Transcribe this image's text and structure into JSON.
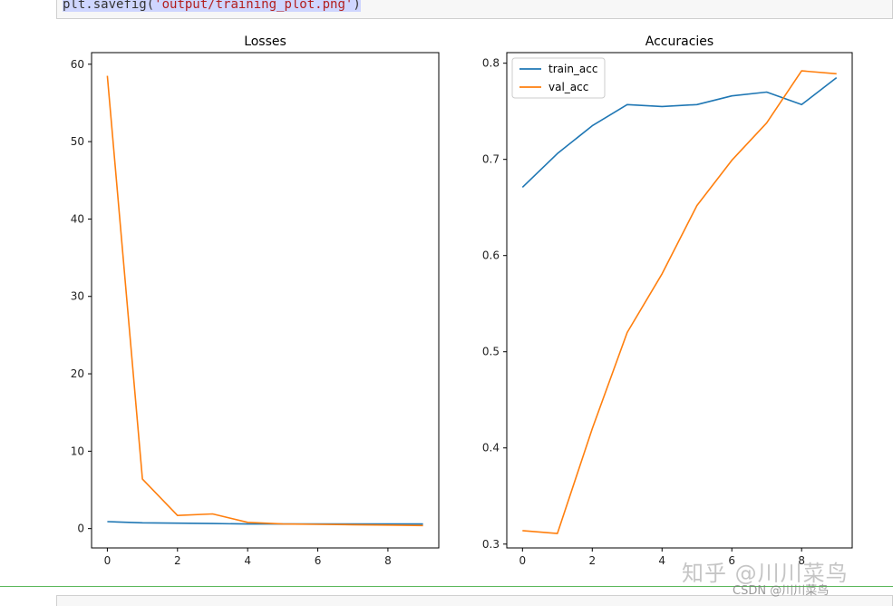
{
  "code": {
    "prefix": "plt.savefig(",
    "string": "'output/training_plot.png'",
    "suffix": ")"
  },
  "watermark": {
    "primary": "知乎 @川川菜鸟",
    "secondary": "CSDN @川川菜鸟"
  },
  "colors": {
    "series1": "#1f77b4",
    "series2": "#ff7f0e"
  },
  "chart_data": [
    {
      "type": "line",
      "title": "Losses",
      "xlabel": "",
      "ylabel": "",
      "xlim": [
        -0.45,
        9.45
      ],
      "ylim": [
        -2.5,
        61.5
      ],
      "xticks": [
        0,
        2,
        4,
        6,
        8
      ],
      "yticks": [
        0,
        10,
        20,
        30,
        40,
        50,
        60
      ],
      "x": [
        0,
        1,
        2,
        3,
        4,
        5,
        6,
        7,
        8,
        9
      ],
      "series": [
        {
          "values": [
            0.9,
            0.75,
            0.7,
            0.65,
            0.6,
            0.6,
            0.6,
            0.6,
            0.6,
            0.6
          ],
          "color": "#1f77b4"
        },
        {
          "values": [
            58.5,
            6.4,
            1.7,
            1.9,
            0.8,
            0.6,
            0.55,
            0.5,
            0.45,
            0.4
          ],
          "color": "#ff7f0e"
        }
      ],
      "grid": false,
      "legend": null
    },
    {
      "type": "line",
      "title": "Accuracies",
      "xlabel": "",
      "ylabel": "",
      "xlim": [
        -0.45,
        9.45
      ],
      "ylim": [
        0.296,
        0.811
      ],
      "xticks": [
        0,
        2,
        4,
        6,
        8
      ],
      "yticks": [
        0.3,
        0.4,
        0.5,
        0.6,
        0.7,
        0.8
      ],
      "x": [
        0,
        1,
        2,
        3,
        4,
        5,
        6,
        7,
        8,
        9
      ],
      "series": [
        {
          "name": "train_acc",
          "values": [
            0.671,
            0.706,
            0.735,
            0.757,
            0.755,
            0.757,
            0.766,
            0.77,
            0.757,
            0.785
          ],
          "color": "#1f77b4"
        },
        {
          "name": "val_acc",
          "values": [
            0.314,
            0.311,
            0.42,
            0.52,
            0.581,
            0.652,
            0.699,
            0.738,
            0.792,
            0.789
          ],
          "color": "#ff7f0e"
        }
      ],
      "grid": false,
      "legend": "upper left"
    }
  ]
}
